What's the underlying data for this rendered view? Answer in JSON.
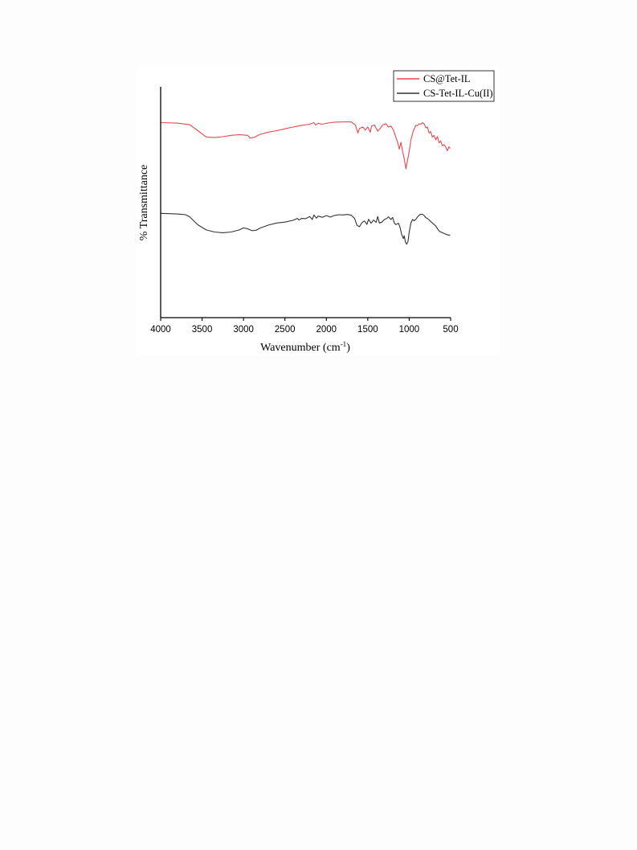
{
  "chart_data": {
    "type": "line",
    "xlabel": "Wavenumber (cm",
    "xlabel_sup": "-1",
    "xlabel_suffix": ")",
    "ylabel": "% Transmittance",
    "xlim": [
      4000,
      500
    ],
    "x_reversed": true,
    "ylim": [
      0,
      1
    ],
    "x_ticks": [
      4000,
      3500,
      3000,
      2500,
      2000,
      1500,
      1000,
      500
    ],
    "grid": false,
    "legend_position": "top-right",
    "series": [
      {
        "name": "CS@Tet-IL",
        "color": "#e8484e",
        "points": [
          [
            4000,
            0.845
          ],
          [
            3800,
            0.843
          ],
          [
            3650,
            0.836
          ],
          [
            3550,
            0.81
          ],
          [
            3450,
            0.783
          ],
          [
            3350,
            0.78
          ],
          [
            3250,
            0.784
          ],
          [
            3150,
            0.79
          ],
          [
            3050,
            0.793
          ],
          [
            2950,
            0.79
          ],
          [
            2920,
            0.778
          ],
          [
            2880,
            0.78
          ],
          [
            2800,
            0.794
          ],
          [
            2700,
            0.804
          ],
          [
            2600,
            0.81
          ],
          [
            2500,
            0.818
          ],
          [
            2400,
            0.826
          ],
          [
            2300,
            0.833
          ],
          [
            2200,
            0.838
          ],
          [
            2150,
            0.845
          ],
          [
            2130,
            0.835
          ],
          [
            2100,
            0.842
          ],
          [
            2050,
            0.838
          ],
          [
            2000,
            0.842
          ],
          [
            1950,
            0.845
          ],
          [
            1900,
            0.847
          ],
          [
            1800,
            0.848
          ],
          [
            1700,
            0.848
          ],
          [
            1650,
            0.835
          ],
          [
            1620,
            0.8
          ],
          [
            1600,
            0.82
          ],
          [
            1560,
            0.826
          ],
          [
            1530,
            0.813
          ],
          [
            1500,
            0.826
          ],
          [
            1470,
            0.803
          ],
          [
            1455,
            0.83
          ],
          [
            1420,
            0.835
          ],
          [
            1380,
            0.808
          ],
          [
            1350,
            0.82
          ],
          [
            1320,
            0.835
          ],
          [
            1280,
            0.84
          ],
          [
            1250,
            0.826
          ],
          [
            1220,
            0.83
          ],
          [
            1190,
            0.813
          ],
          [
            1160,
            0.78
          ],
          [
            1140,
            0.76
          ],
          [
            1120,
            0.73
          ],
          [
            1100,
            0.76
          ],
          [
            1080,
            0.72
          ],
          [
            1060,
            0.69
          ],
          [
            1040,
            0.645
          ],
          [
            1025,
            0.672
          ],
          [
            1000,
            0.72
          ],
          [
            980,
            0.77
          ],
          [
            950,
            0.81
          ],
          [
            920,
            0.833
          ],
          [
            900,
            0.832
          ],
          [
            880,
            0.84
          ],
          [
            860,
            0.838
          ],
          [
            840,
            0.845
          ],
          [
            820,
            0.84
          ],
          [
            800,
            0.822
          ],
          [
            780,
            0.826
          ],
          [
            760,
            0.8
          ],
          [
            740,
            0.806
          ],
          [
            720,
            0.782
          ],
          [
            700,
            0.79
          ],
          [
            680,
            0.77
          ],
          [
            660,
            0.785
          ],
          [
            640,
            0.758
          ],
          [
            620,
            0.766
          ],
          [
            600,
            0.745
          ],
          [
            580,
            0.75
          ],
          [
            560,
            0.74
          ],
          [
            540,
            0.723
          ],
          [
            520,
            0.74
          ],
          [
            505,
            0.733
          ]
        ]
      },
      {
        "name": "CS-Tet-IL-Cu(II)",
        "color": "#333333",
        "points": [
          [
            4000,
            0.452
          ],
          [
            3800,
            0.449
          ],
          [
            3700,
            0.446
          ],
          [
            3650,
            0.437
          ],
          [
            3550,
            0.402
          ],
          [
            3450,
            0.38
          ],
          [
            3350,
            0.371
          ],
          [
            3250,
            0.368
          ],
          [
            3150,
            0.371
          ],
          [
            3050,
            0.38
          ],
          [
            3000,
            0.389
          ],
          [
            2950,
            0.385
          ],
          [
            2900,
            0.377
          ],
          [
            2850,
            0.378
          ],
          [
            2800,
            0.388
          ],
          [
            2700,
            0.401
          ],
          [
            2600,
            0.41
          ],
          [
            2500,
            0.414
          ],
          [
            2400,
            0.422
          ],
          [
            2350,
            0.43
          ],
          [
            2330,
            0.423
          ],
          [
            2300,
            0.43
          ],
          [
            2250,
            0.429
          ],
          [
            2200,
            0.438
          ],
          [
            2170,
            0.425
          ],
          [
            2150,
            0.445
          ],
          [
            2120,
            0.431
          ],
          [
            2100,
            0.44
          ],
          [
            2050,
            0.435
          ],
          [
            2000,
            0.442
          ],
          [
            1950,
            0.436
          ],
          [
            1900,
            0.443
          ],
          [
            1850,
            0.446
          ],
          [
            1800,
            0.445
          ],
          [
            1750,
            0.447
          ],
          [
            1700,
            0.444
          ],
          [
            1660,
            0.43
          ],
          [
            1630,
            0.4
          ],
          [
            1600,
            0.394
          ],
          [
            1570,
            0.412
          ],
          [
            1540,
            0.419
          ],
          [
            1510,
            0.404
          ],
          [
            1490,
            0.426
          ],
          [
            1460,
            0.409
          ],
          [
            1430,
            0.423
          ],
          [
            1400,
            0.413
          ],
          [
            1380,
            0.438
          ],
          [
            1360,
            0.41
          ],
          [
            1330,
            0.414
          ],
          [
            1300,
            0.425
          ],
          [
            1270,
            0.43
          ],
          [
            1250,
            0.437
          ],
          [
            1220,
            0.425
          ],
          [
            1200,
            0.434
          ],
          [
            1180,
            0.41
          ],
          [
            1160,
            0.403
          ],
          [
            1130,
            0.409
          ],
          [
            1110,
            0.39
          ],
          [
            1090,
            0.36
          ],
          [
            1070,
            0.343
          ],
          [
            1060,
            0.355
          ],
          [
            1045,
            0.326
          ],
          [
            1030,
            0.318
          ],
          [
            1015,
            0.33
          ],
          [
            1000,
            0.37
          ],
          [
            980,
            0.41
          ],
          [
            960,
            0.425
          ],
          [
            940,
            0.42
          ],
          [
            920,
            0.426
          ],
          [
            900,
            0.436
          ],
          [
            880,
            0.444
          ],
          [
            860,
            0.448
          ],
          [
            840,
            0.448
          ],
          [
            820,
            0.443
          ],
          [
            800,
            0.433
          ],
          [
            780,
            0.43
          ],
          [
            750,
            0.42
          ],
          [
            720,
            0.41
          ],
          [
            700,
            0.403
          ],
          [
            680,
            0.398
          ],
          [
            650,
            0.38
          ],
          [
            630,
            0.373
          ],
          [
            600,
            0.368
          ],
          [
            560,
            0.362
          ],
          [
            530,
            0.358
          ],
          [
            505,
            0.358
          ]
        ]
      }
    ]
  }
}
